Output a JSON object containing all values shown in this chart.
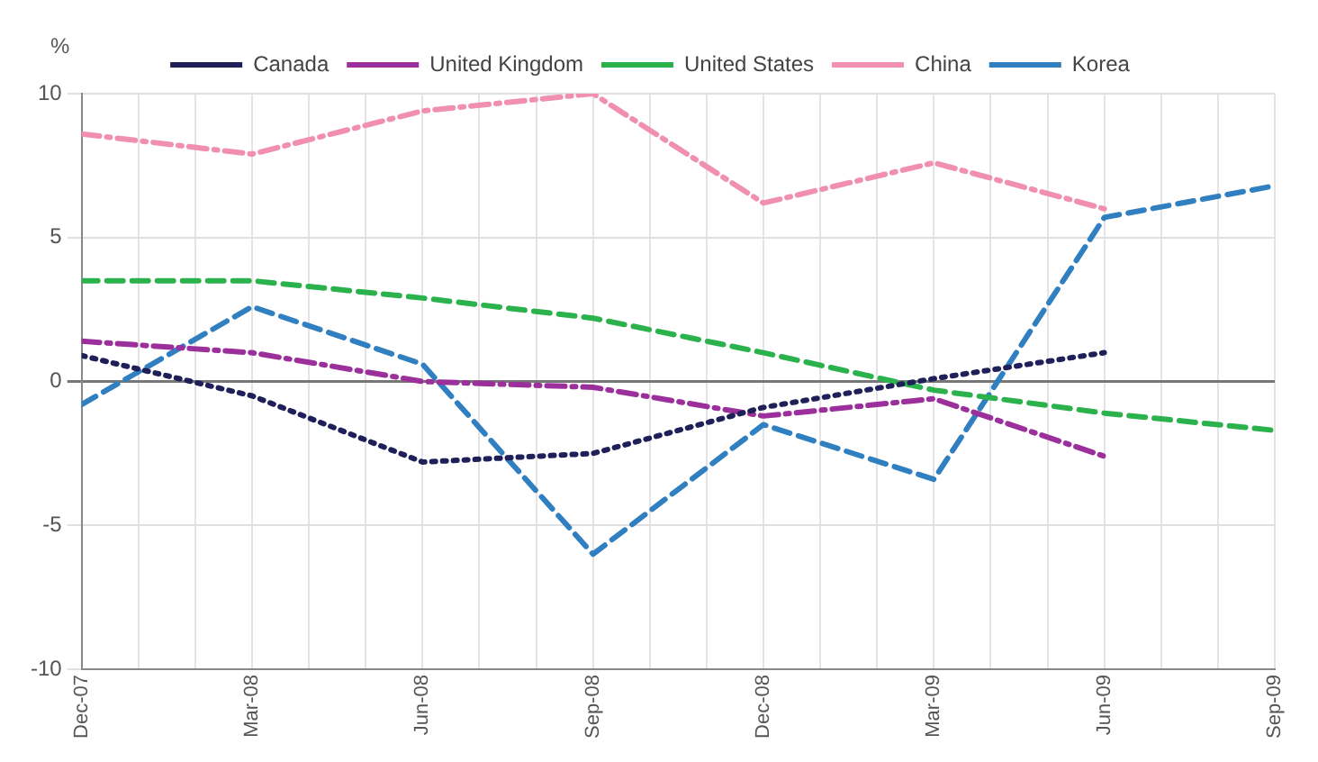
{
  "chart_data": {
    "type": "line",
    "ylabel": "%",
    "x": [
      "2007-12",
      "2008-03",
      "2008-06",
      "2008-09",
      "2008-12",
      "2009-03",
      "2009-06",
      "2009-09"
    ],
    "series": [
      {
        "name": "Canada",
        "color": "#1f1f5a",
        "line_style": "dotted",
        "values": [
          0.9,
          -0.5,
          -2.8,
          -2.5,
          -0.9,
          0.1,
          1.0,
          null
        ]
      },
      {
        "name": "United Kingdom",
        "color": "#9b2f9b",
        "line_style": "dashdot",
        "values": [
          1.4,
          1.0,
          0.0,
          -0.2,
          -1.2,
          -0.6,
          -2.6,
          null
        ]
      },
      {
        "name": "United States",
        "color": "#2bb24c",
        "line_style": "dashed",
        "values": [
          3.5,
          3.5,
          2.9,
          2.2,
          1.0,
          -0.3,
          -1.1,
          -1.7
        ]
      },
      {
        "name": "China",
        "color": "#f08fb0",
        "line_style": "dashdot",
        "values": [
          8.6,
          7.9,
          9.4,
          10.0,
          6.2,
          7.6,
          6.0,
          null
        ]
      },
      {
        "name": "Korea",
        "color": "#2f7fc1",
        "line_style": "dashed",
        "values": [
          -0.8,
          2.6,
          0.6,
          -6.0,
          -1.5,
          -3.4,
          5.7,
          6.8
        ]
      }
    ],
    "xlim": [
      "2007-12",
      "2009-09"
    ],
    "xticks": [
      {
        "value": "2007-12",
        "label": "Dec-07"
      },
      {
        "value": "2008-01",
        "label": null
      },
      {
        "value": "2008-02",
        "label": null
      },
      {
        "value": "2008-03",
        "label": "Mar-08"
      },
      {
        "value": "2008-04",
        "label": null
      },
      {
        "value": "2008-05",
        "label": null
      },
      {
        "value": "2008-06",
        "label": "Jun-08"
      },
      {
        "value": "2008-07",
        "label": null
      },
      {
        "value": "2008-08",
        "label": null
      },
      {
        "value": "2008-09",
        "label": "Sep-08"
      },
      {
        "value": "2008-10",
        "label": null
      },
      {
        "value": "2008-11",
        "label": null
      },
      {
        "value": "2008-12",
        "label": "Dec-08"
      },
      {
        "value": "2009-01",
        "label": null
      },
      {
        "value": "2009-02",
        "label": null
      },
      {
        "value": "2009-03",
        "label": "Mar-09"
      },
      {
        "value": "2009-04",
        "label": null
      },
      {
        "value": "2009-05",
        "label": null
      },
      {
        "value": "2009-06",
        "label": "Jun-09"
      },
      {
        "value": "2009-07",
        "label": null
      },
      {
        "value": "2009-08",
        "label": null
      },
      {
        "value": "2009-09",
        "label": "Sep-09"
      }
    ],
    "ylim": [
      -10,
      10
    ],
    "yticks": [
      -10,
      -5,
      0,
      5,
      10
    ],
    "grid": true,
    "legend": "top",
    "marker": "none"
  }
}
